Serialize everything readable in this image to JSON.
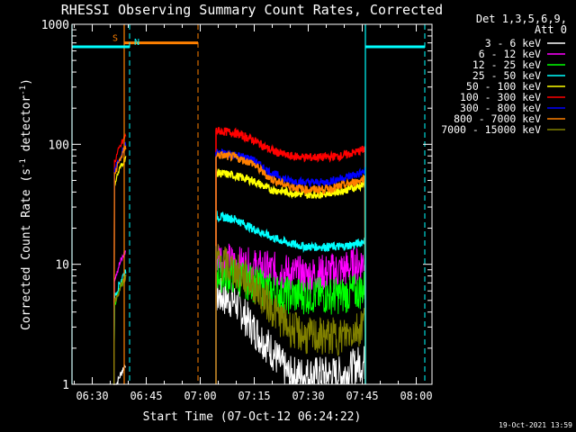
{
  "chart_data": {
    "type": "line",
    "title": "RHESSI Observing Summary Count Rates, Corrected",
    "xlabel": "Start Time (07-Oct-12 06:24:22)",
    "ylabel": "Corrected Count Rate (s⁻¹ detector⁻¹)",
    "y_scale": "log",
    "ylim": [
      1,
      1000
    ],
    "x_unit": "minutes after 06:24:22",
    "xlim": [
      0,
      100
    ],
    "x_ticks": [
      {
        "x": 5.63,
        "label": "06:30"
      },
      {
        "x": 20.63,
        "label": "06:45"
      },
      {
        "x": 35.63,
        "label": "07:00"
      },
      {
        "x": 50.63,
        "label": "07:15"
      },
      {
        "x": 65.63,
        "label": "07:30"
      },
      {
        "x": 80.63,
        "label": "07:45"
      },
      {
        "x": 95.63,
        "label": "08:00"
      }
    ],
    "y_ticks": [
      {
        "y": 1,
        "label": "1"
      },
      {
        "y": 10,
        "label": "10"
      },
      {
        "y": 100,
        "label": "100"
      },
      {
        "y": 1000,
        "label": "1000"
      }
    ],
    "legend_header": [
      "Det 1,3,5,6,9,",
      "Att 0"
    ],
    "legend_position": "right",
    "footer_date": "19-Oct-2021 13:59",
    "series": [
      {
        "name": "3 - 6 keV",
        "color": "#ffffff"
      },
      {
        "name": "6 - 12 keV",
        "color": "#ff00ff"
      },
      {
        "name": "12 - 25 keV",
        "color": "#00ff00"
      },
      {
        "name": "25 - 50 keV",
        "color": "#00ffff"
      },
      {
        "name": "50 - 100 keV",
        "color": "#ffff00"
      },
      {
        "name": "100 - 300 keV",
        "color": "#ff0000"
      },
      {
        "name": "300 - 800 keV",
        "color": "#0000ff"
      },
      {
        "name": "800 - 7000 keV",
        "color": "#ff8000"
      },
      {
        "name": "7000 - 15000 keV",
        "color": "#808000"
      }
    ],
    "segments": [
      {
        "x_range": [
          11.5,
          15.0
        ],
        "rises": true,
        "values_end": [
          1.5,
          13,
          8,
          9,
          80,
          120,
          100,
          95,
          8
        ]
      },
      {
        "x_range": [
          40.0,
          81.5
        ],
        "profiles": {
          "x": [
            40,
            45,
            50,
            55,
            60,
            65,
            70,
            75,
            80,
            81.5
          ],
          "3 - 6 keV": [
            5.5,
            5,
            3,
            2,
            1.2,
            1.2,
            1.2,
            1.2,
            1.5,
            1.5
          ],
          "6 - 12 keV": [
            12,
            10,
            9.5,
            9,
            8.5,
            8,
            8.5,
            9,
            10,
            11
          ],
          "12 - 25 keV": [
            8.5,
            8,
            7,
            6,
            5.5,
            5.5,
            5.5,
            5.5,
            6,
            6.5
          ],
          "25 - 50 keV": [
            25,
            24,
            20,
            17,
            15,
            14,
            14,
            14,
            15,
            16
          ],
          "50 - 100 keV": [
            58,
            55,
            50,
            42,
            40,
            38,
            39,
            41,
            45,
            47
          ],
          "100 - 300 keV": [
            130,
            125,
            110,
            90,
            80,
            78,
            78,
            80,
            88,
            92
          ],
          "300 - 800 keV": [
            85,
            82,
            75,
            58,
            50,
            48,
            48,
            52,
            57,
            60
          ],
          "800 - 7000 keV": [
            82,
            78,
            70,
            52,
            45,
            42,
            42,
            45,
            50,
            53
          ],
          "7000 - 15000 keV": [
            11,
            9,
            7,
            4.5,
            3,
            2.5,
            2.5,
            2.5,
            3,
            3.5
          ]
        }
      }
    ],
    "flags": [
      {
        "label": "S",
        "color": "#ff8000",
        "x_range": [
          14.5,
          35.0
        ],
        "level": 700,
        "dashed_at": [
          35.0
        ],
        "solid_at": [
          14.5
        ]
      },
      {
        "label": "N",
        "color": "#00ffff",
        "x_ranges": [
          [
            0,
            16.0
          ],
          [
            81.5,
            98.0
          ]
        ],
        "level": 650,
        "dashed_at": [
          16.0,
          98.0
        ],
        "solid_at": [
          0,
          81.5
        ]
      }
    ]
  }
}
